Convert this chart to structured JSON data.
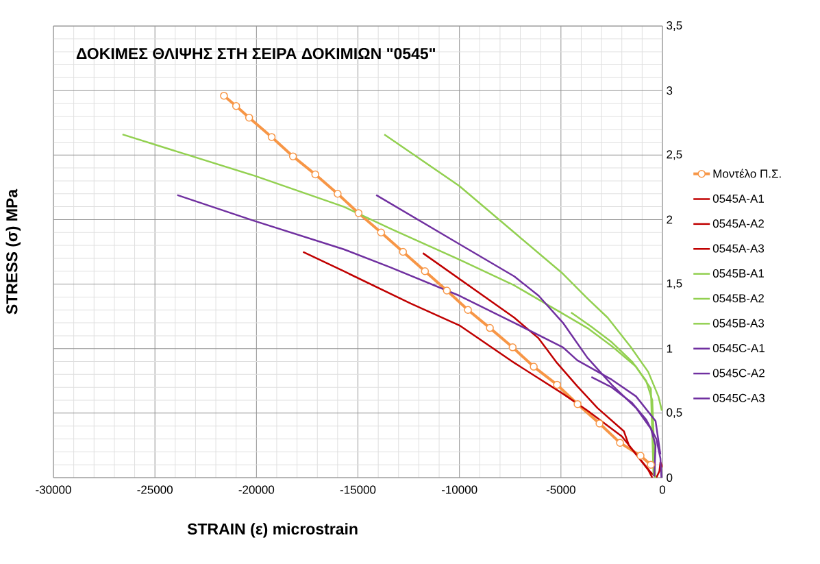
{
  "chart_data": {
    "type": "line",
    "title": "ΔΟΚΙΜΕΣ ΘΛΙΨΗΣ ΣΤΗ ΣΕΙΡΑ ΔΟΚΙΜΙΩΝ \"0545\"",
    "xlabel": "STRAIN (ε) microstrain",
    "ylabel": "STRESS (σ) MPa",
    "xlim": [
      -30000,
      0
    ],
    "ylim": [
      0,
      3.5
    ],
    "xticks": [
      -30000,
      -25000,
      -20000,
      -15000,
      -10000,
      -5000,
      0
    ],
    "yticks": [
      0,
      {
        "value": 0.5,
        "label": "0,5"
      },
      1,
      {
        "value": 1.5,
        "label": "1,5"
      },
      2,
      {
        "value": 2.5,
        "label": "2,5"
      },
      3,
      {
        "value": 3.5,
        "label": "3,5"
      }
    ],
    "grid": true,
    "legend": "right",
    "line_style": "solid",
    "series": [
      {
        "name": "Μοντέλο Π.Σ.",
        "color": "#f79646",
        "marker": "circle",
        "x": [
          -21600,
          -21000,
          -20360,
          -19250,
          -18200,
          -17100,
          -16000,
          -14970,
          -13860,
          -12780,
          -11700,
          -10620,
          -9580,
          -8500,
          -7380,
          -6340,
          -5190,
          -4180,
          -3100,
          -2090,
          -1080,
          -570
        ],
        "values": [
          2.96,
          2.88,
          2.79,
          2.64,
          2.49,
          2.35,
          2.2,
          2.05,
          1.9,
          1.75,
          1.6,
          1.45,
          1.3,
          1.16,
          1.01,
          0.86,
          0.72,
          0.57,
          0.42,
          0.27,
          0.17,
          0.1
        ]
      },
      {
        "name": "0545A-A1",
        "color": "#c00000",
        "x": [
          -17700,
          -15700,
          -12400,
          -10000,
          -7300,
          -4900,
          -3700,
          -2000,
          -570,
          -300
        ],
        "values": [
          1.75,
          1.6,
          1.35,
          1.18,
          0.89,
          0.65,
          0.52,
          0.32,
          0.04,
          0
        ]
      },
      {
        "name": "0545A-A2",
        "color": "#c00000",
        "x": [
          -11800,
          -10000,
          -7300,
          -6100,
          -5200,
          -4200,
          -3200,
          -1900,
          -1650,
          -700,
          -500
        ],
        "values": [
          1.74,
          1.54,
          1.24,
          1.08,
          0.89,
          0.71,
          0.54,
          0.36,
          0.25,
          0.06,
          0
        ]
      },
      {
        "name": "0545A-A3",
        "color": "#c00000",
        "x": [
          -300,
          -150,
          -100,
          0
        ],
        "values": [
          0,
          0.05,
          0.12,
          0.08
        ]
      },
      {
        "name": "0545B-A1",
        "color": "#92d050",
        "x": [
          -26600,
          -20100,
          -15700,
          -13400,
          -10000,
          -7300,
          -4900,
          -3700,
          -2500,
          -1300,
          -570,
          -440
        ],
        "values": [
          2.66,
          2.34,
          2.1,
          1.93,
          1.69,
          1.49,
          1.27,
          1.16,
          1.02,
          0.86,
          0.69,
          0.02
        ]
      },
      {
        "name": "0545B-A2",
        "color": "#92d050",
        "x": [
          -13700,
          -10000,
          -7300,
          -4900,
          -3700,
          -2700,
          -1550,
          -700,
          -200,
          -30
        ],
        "values": [
          2.66,
          2.26,
          1.9,
          1.58,
          1.39,
          1.24,
          1.01,
          0.82,
          0.63,
          0.52
        ]
      },
      {
        "name": "0545B-A3",
        "color": "#92d050",
        "x": [
          -4500,
          -3500,
          -2500,
          -1500,
          -800,
          -500,
          -400,
          -350
        ],
        "values": [
          1.28,
          1.17,
          1.05,
          0.9,
          0.75,
          0.6,
          0.2,
          0
        ]
      },
      {
        "name": "0545C-A1",
        "color": "#7030a0",
        "x": [
          -23900,
          -20100,
          -15700,
          -13400,
          -10000,
          -7300,
          -4900,
          -4200,
          -2500,
          -1300,
          -340,
          -100
        ],
        "values": [
          2.19,
          1.99,
          1.77,
          1.63,
          1.41,
          1.2,
          1.01,
          0.91,
          0.76,
          0.63,
          0.44,
          0.18
        ]
      },
      {
        "name": "0545C-A2",
        "color": "#7030a0",
        "x": [
          -14100,
          -10000,
          -7300,
          -6100,
          -4900,
          -3700,
          -2500,
          -1300,
          -570,
          -340,
          -400
        ],
        "values": [
          2.19,
          1.81,
          1.56,
          1.41,
          1.2,
          0.93,
          0.72,
          0.54,
          0.38,
          0.25,
          0.01
        ]
      },
      {
        "name": "0545C-A3",
        "color": "#7030a0",
        "x": [
          -3500,
          -2500,
          -1500,
          -800,
          -300,
          -100,
          -50
        ],
        "values": [
          0.78,
          0.7,
          0.58,
          0.45,
          0.3,
          0.15,
          0
        ]
      }
    ]
  }
}
